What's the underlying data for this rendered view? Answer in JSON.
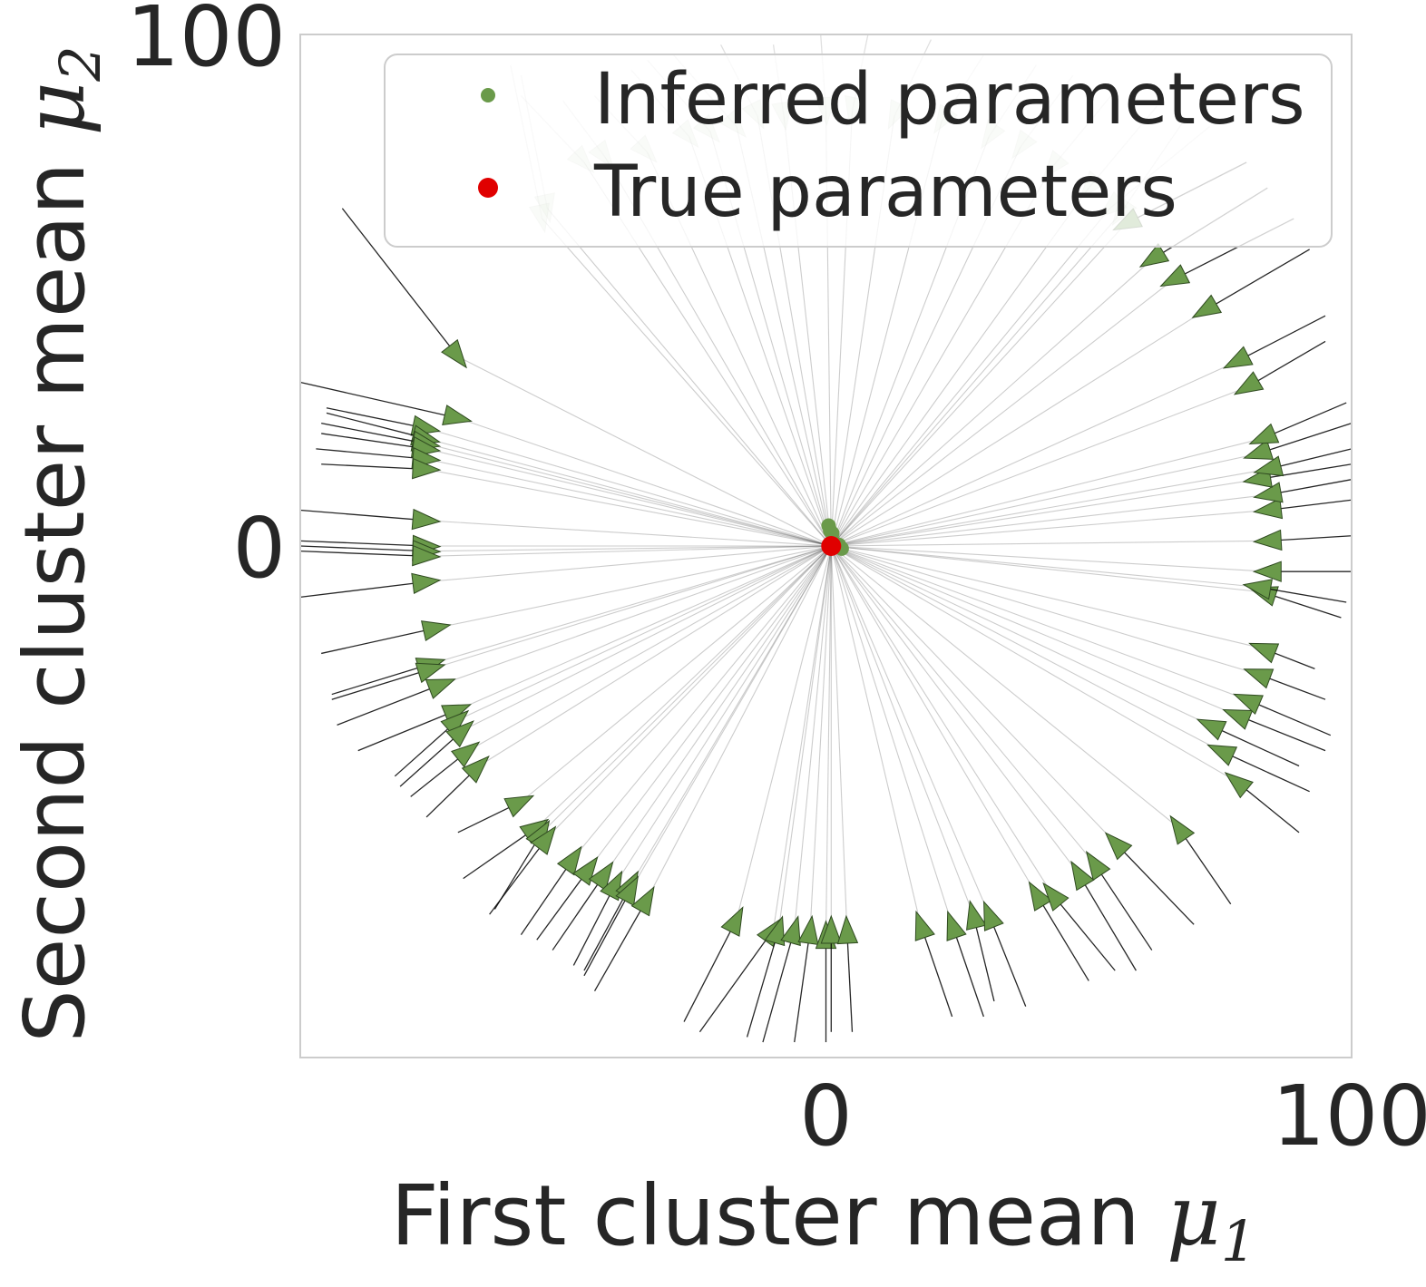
{
  "chart_data": {
    "type": "scatter",
    "xlabel": "First cluster mean μ₁",
    "xlabel_text": "First cluster mean ",
    "xlabel_symbol": "μ",
    "xlabel_sub": "1",
    "ylabel": "Second cluster mean μ₂",
    "ylabel_text": "Second cluster mean ",
    "ylabel_symbol": "μ",
    "ylabel_sub": "2",
    "xlim": [
      -100,
      100
    ],
    "ylim": [
      -100,
      100
    ],
    "xticks": [
      0,
      100
    ],
    "xtick_labels": [
      "0",
      "100"
    ],
    "yticks": [
      0,
      100
    ],
    "ytick_labels": [
      "0",
      "100"
    ],
    "grid": false,
    "legend_position": "upper right",
    "legend": [
      {
        "label": "Inferred parameters",
        "color": "#6a9a4a",
        "marker": "small-dot"
      },
      {
        "label": "True parameters",
        "color": "#e00000",
        "marker": "dot"
      }
    ],
    "series": [
      {
        "name": "Inferred parameters",
        "color": "#6a9a4a",
        "description": "gradient trajectories from random initializations (arrows) converging to the inferred parameters",
        "trajectories": [
          {
            "start": [
              -92,
              66
            ],
            "arrow": [
              -70,
              37
            ]
          },
          {
            "start": [
              -100,
              32
            ],
            "arrow": [
              -70,
              25
            ]
          },
          {
            "start": [
              -95,
              27
            ],
            "arrow": [
              -76,
              23
            ]
          },
          {
            "start": [
              -95,
              26
            ],
            "arrow": [
              -76,
              21
            ]
          },
          {
            "start": [
              -96,
              24
            ],
            "arrow": [
              -76,
              20
            ]
          },
          {
            "start": [
              -96,
              22
            ],
            "arrow": [
              -76,
              19
            ]
          },
          {
            "start": [
              -97,
              19
            ],
            "arrow": [
              -76,
              17
            ]
          },
          {
            "start": [
              -96,
              16
            ],
            "arrow": [
              -76,
              15
            ]
          },
          {
            "start": [
              -100,
              7
            ],
            "arrow": [
              -76,
              5
            ]
          },
          {
            "start": [
              -100,
              1
            ],
            "arrow": [
              -76,
              0
            ]
          },
          {
            "start": [
              -100,
              0
            ],
            "arrow": [
              -76,
              -1
            ]
          },
          {
            "start": [
              -100,
              -1
            ],
            "arrow": [
              -76,
              -2
            ]
          },
          {
            "start": [
              -100,
              -10
            ],
            "arrow": [
              -76,
              -7
            ]
          },
          {
            "start": [
              -96,
              -21
            ],
            "arrow": [
              -74,
              -16
            ]
          },
          {
            "start": [
              -94,
              -29
            ],
            "arrow": [
              -75,
              -23
            ]
          },
          {
            "start": [
              -94,
              -30
            ],
            "arrow": [
              -75,
              -24
            ]
          },
          {
            "start": [
              -93,
              -35
            ],
            "arrow": [
              -73,
              -27
            ]
          },
          {
            "start": [
              -89,
              -40
            ],
            "arrow": [
              -70,
              -32
            ]
          },
          {
            "start": [
              -82,
              -45
            ],
            "arrow": [
              -70,
              -34
            ]
          },
          {
            "start": [
              -81,
              -47
            ],
            "arrow": [
              -69,
              -36
            ]
          },
          {
            "start": [
              -79,
              -49
            ],
            "arrow": [
              -68,
              -40
            ]
          },
          {
            "start": [
              -76,
              -53
            ],
            "arrow": [
              -66,
              -43
            ]
          },
          {
            "start": [
              -70,
              -56
            ],
            "arrow": [
              -58,
              -50
            ]
          },
          {
            "start": [
              -69,
              -65
            ],
            "arrow": [
              -55,
              -55
            ]
          },
          {
            "start": [
              -63,
              -71
            ],
            "arrow": [
              -54,
              -56
            ]
          },
          {
            "start": [
              -64,
              -72
            ],
            "arrow": [
              -53,
              -57
            ]
          },
          {
            "start": [
              -58,
              -76
            ],
            "arrow": [
              -48,
              -61
            ]
          },
          {
            "start": [
              -55,
              -77
            ],
            "arrow": [
              -45,
              -63
            ]
          },
          {
            "start": [
              -52,
              -79
            ],
            "arrow": [
              -42,
              -64
            ]
          },
          {
            "start": [
              -48,
              -82
            ],
            "arrow": [
              -40,
              -66
            ]
          },
          {
            "start": [
              -46,
              -83
            ],
            "arrow": [
              -37,
              -66
            ]
          },
          {
            "start": [
              -46,
              -84
            ],
            "arrow": [
              -37,
              -67
            ]
          },
          {
            "start": [
              -44,
              -87
            ],
            "arrow": [
              -34,
              -69
            ]
          },
          {
            "start": [
              -27,
              -93
            ],
            "arrow": [
              -17,
              -73
            ]
          },
          {
            "start": [
              -24,
              -95
            ],
            "arrow": [
              -10,
              -75
            ]
          },
          {
            "start": [
              -15,
              -96
            ],
            "arrow": [
              -9,
              -75
            ]
          },
          {
            "start": [
              -12,
              -97
            ],
            "arrow": [
              -6,
              -75
            ]
          },
          {
            "start": [
              -6,
              -97
            ],
            "arrow": [
              -3,
              -75
            ]
          },
          {
            "start": [
              0,
              -97
            ],
            "arrow": [
              0,
              -76
            ]
          },
          {
            "start": [
              1,
              -95
            ],
            "arrow": [
              1,
              -75
            ]
          },
          {
            "start": [
              5,
              -95
            ],
            "arrow": [
              4,
              -75
            ]
          },
          {
            "start": [
              24,
              -92
            ],
            "arrow": [
              18,
              -74
            ]
          },
          {
            "start": [
              30,
              -92
            ],
            "arrow": [
              24,
              -74
            ]
          },
          {
            "start": [
              32,
              -89
            ],
            "arrow": [
              28,
              -72
            ]
          },
          {
            "start": [
              38,
              -90
            ],
            "arrow": [
              31,
              -72
            ]
          },
          {
            "start": [
              50,
              -85
            ],
            "arrow": [
              40,
              -68
            ]
          },
          {
            "start": [
              55,
              -83
            ],
            "arrow": [
              43,
              -68
            ]
          },
          {
            "start": [
              59,
              -83
            ],
            "arrow": [
              48,
              -64
            ]
          },
          {
            "start": [
              62,
              -79
            ],
            "arrow": [
              51,
              -62
            ]
          },
          {
            "start": [
              70,
              -74
            ],
            "arrow": [
              55,
              -58
            ]
          },
          {
            "start": [
              77,
              -70
            ],
            "arrow": [
              67,
              -55
            ]
          },
          {
            "start": [
              90,
              -56
            ],
            "arrow": [
              78,
              -46
            ]
          },
          {
            "start": [
              92,
              -48
            ],
            "arrow": [
              75,
              -40
            ]
          },
          {
            "start": [
              90,
              -43
            ],
            "arrow": [
              73,
              -35
            ]
          },
          {
            "start": [
              95,
              -40
            ],
            "arrow": [
              78,
              -33
            ]
          },
          {
            "start": [
              96,
              -37
            ],
            "arrow": [
              80,
              -30
            ]
          },
          {
            "start": [
              95,
              -30
            ],
            "arrow": [
              82,
              -25
            ]
          },
          {
            "start": [
              93,
              -24
            ],
            "arrow": [
              83,
              -20
            ]
          },
          {
            "start": [
              98,
              -14
            ],
            "arrow": [
              83,
              -9
            ]
          },
          {
            "start": [
              99,
              -11
            ],
            "arrow": [
              82,
              -8
            ]
          },
          {
            "start": [
              100,
              -5
            ],
            "arrow": [
              84,
              -5
            ]
          },
          {
            "start": [
              100,
              2
            ],
            "arrow": [
              84,
              1
            ]
          },
          {
            "start": [
              100,
              9
            ],
            "arrow": [
              84,
              7
            ]
          },
          {
            "start": [
              100,
              13
            ],
            "arrow": [
              84,
              10
            ]
          },
          {
            "start": [
              100,
              16
            ],
            "arrow": [
              82,
              13
            ]
          },
          {
            "start": [
              100,
              19
            ],
            "arrow": [
              84,
              15
            ]
          },
          {
            "start": [
              100,
              24
            ],
            "arrow": [
              82,
              18
            ]
          },
          {
            "start": [
              99,
              28
            ],
            "arrow": [
              83,
              21
            ]
          },
          {
            "start": [
              95,
              40
            ],
            "arrow": [
              80,
              31
            ]
          },
          {
            "start": [
              95,
              45
            ],
            "arrow": [
              78,
              36
            ]
          },
          {
            "start": [
              92,
              58
            ],
            "arrow": [
              72,
              46
            ]
          },
          {
            "start": [
              89,
              64
            ],
            "arrow": [
              66,
              52
            ]
          },
          {
            "start": [
              84,
              70
            ],
            "arrow": [
              62,
              56
            ]
          },
          {
            "start": [
              80,
              75
            ],
            "arrow": [
              57,
              63
            ]
          },
          {
            "start": [
              73,
              82
            ],
            "arrow": [
              54,
              66
            ]
          },
          {
            "start": [
              -58,
              92
            ],
            "arrow": [
              -53,
              66
            ]
          },
          {
            "start": [
              -60,
              94
            ],
            "arrow": [
              -54,
              64
            ]
          },
          {
            "start": [
              -58,
              88
            ],
            "arrow": [
              -46,
              75
            ]
          },
          {
            "start": [
              -50,
              87
            ],
            "arrow": [
              -42,
              76
            ]
          },
          {
            "start": [
              -44,
              88
            ],
            "arrow": [
              -34,
              77
            ]
          },
          {
            "start": [
              -37,
              93
            ],
            "arrow": [
              -26,
              80
            ]
          },
          {
            "start": [
              -34,
              95
            ],
            "arrow": [
              -22,
              81
            ]
          },
          {
            "start": [
              -29,
              96
            ],
            "arrow": [
              -17,
              82
            ]
          },
          {
            "start": [
              -20,
              98
            ],
            "arrow": [
              -13,
              84
            ]
          },
          {
            "start": [
              -10,
              98
            ],
            "arrow": [
              -8,
              84
            ]
          },
          {
            "start": [
              -1,
              100
            ],
            "arrow": [
              0,
              85
            ]
          },
          {
            "start": [
              8,
              100
            ],
            "arrow": [
              5,
              85
            ]
          },
          {
            "start": [
              20,
              99
            ],
            "arrow": [
              13,
              84
            ]
          },
          {
            "start": [
              30,
              96
            ],
            "arrow": [
              22,
              83
            ]
          },
          {
            "start": [
              40,
              94
            ],
            "arrow": [
              31,
              80
            ]
          },
          {
            "start": [
              47,
              92
            ],
            "arrow": [
              37,
              78
            ]
          },
          {
            "start": [
              55,
              89
            ],
            "arrow": [
              43,
              74
            ]
          },
          {
            "start": [
              63,
              86
            ],
            "arrow": [
              50,
              70
            ]
          },
          {
            "start": [
              68,
              83
            ],
            "arrow": [
              56,
              65
            ]
          }
        ],
        "endpoints": [
          [
            0.5,
            4
          ],
          [
            0.8,
            3
          ],
          [
            1.2,
            2.5
          ],
          [
            2.5,
            0.2
          ],
          [
            3,
            -0.5
          ],
          [
            1.5,
            0.8
          ]
        ]
      },
      {
        "name": "True parameters",
        "color": "#e00000",
        "points": [
          [
            1,
            0
          ]
        ]
      }
    ]
  }
}
